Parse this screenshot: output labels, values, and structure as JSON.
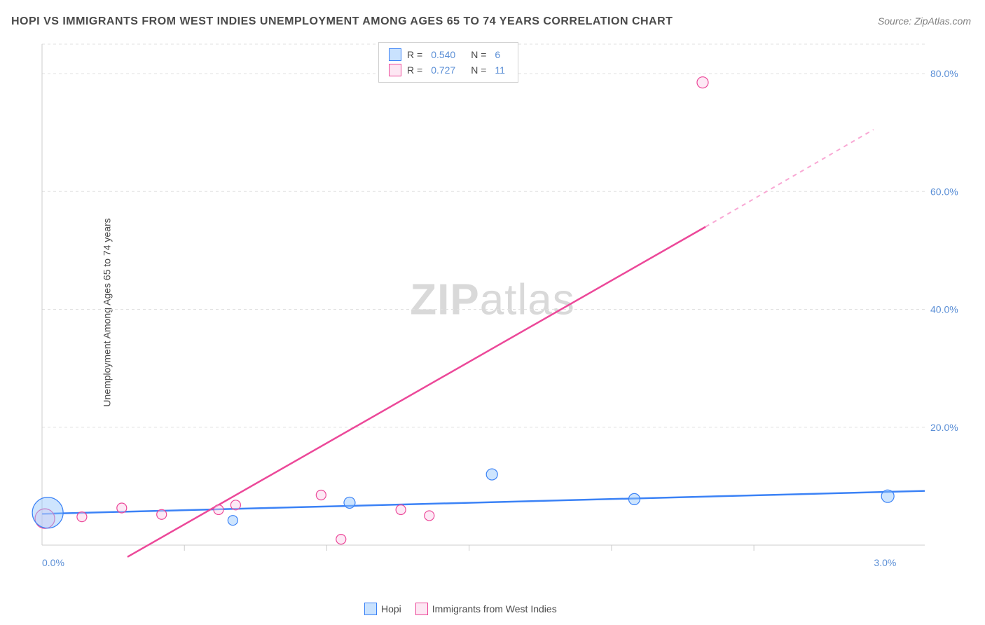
{
  "title": "HOPI VS IMMIGRANTS FROM WEST INDIES UNEMPLOYMENT AMONG AGES 65 TO 74 YEARS CORRELATION CHART",
  "source": "Source: ZipAtlas.com",
  "ylabel": "Unemployment Among Ages 65 to 74 years",
  "watermark_bold": "ZIP",
  "watermark_light": "atlas",
  "legend_top": {
    "series1": {
      "r_label": "R =",
      "r": "0.540",
      "n_label": "N =",
      "n": "6"
    },
    "series2": {
      "r_label": "R =",
      "r": "0.727",
      "n_label": "N =",
      "n": "11"
    }
  },
  "legend_bottom": {
    "series1": "Hopi",
    "series2": "Immigrants from West Indies"
  },
  "chart": {
    "type": "scatter",
    "xlim": [
      0.0,
      3.1
    ],
    "ylim": [
      0.0,
      85.0
    ],
    "xticks": [
      0.0,
      3.0
    ],
    "xtick_labels": [
      "0.0%",
      "3.0%"
    ],
    "xtick_minor": [
      0.5,
      1.0,
      1.5,
      2.0,
      2.5
    ],
    "yticks": [
      20.0,
      40.0,
      60.0,
      80.0
    ],
    "ytick_labels": [
      "20.0%",
      "40.0%",
      "60.0%",
      "80.0%"
    ],
    "colors": {
      "blue_stroke": "#3b82f6",
      "blue_fill": "rgba(147,197,253,0.45)",
      "pink_stroke": "#ec4899",
      "pink_fill": "rgba(251,207,232,0.45)",
      "grid": "#e0e0e0",
      "axis": "#cccccc",
      "tick_text": "#5b8fd6",
      "background": "#ffffff"
    },
    "series_blue": {
      "name": "Hopi",
      "points": [
        {
          "x": 0.02,
          "y": 5.5,
          "r": 22
        },
        {
          "x": 0.67,
          "y": 4.2,
          "r": 7
        },
        {
          "x": 1.08,
          "y": 7.2,
          "r": 8
        },
        {
          "x": 1.58,
          "y": 12.0,
          "r": 8
        },
        {
          "x": 2.08,
          "y": 7.8,
          "r": 8
        },
        {
          "x": 2.97,
          "y": 8.3,
          "r": 9
        }
      ],
      "trend": {
        "x1": 0.0,
        "y1": 5.3,
        "x2": 3.1,
        "y2": 9.2
      }
    },
    "series_pink": {
      "name": "Immigrants from West Indies",
      "points": [
        {
          "x": 0.01,
          "y": 4.5,
          "r": 14
        },
        {
          "x": 0.14,
          "y": 4.8,
          "r": 7
        },
        {
          "x": 0.28,
          "y": 6.3,
          "r": 7
        },
        {
          "x": 0.42,
          "y": 5.2,
          "r": 7
        },
        {
          "x": 0.62,
          "y": 6.0,
          "r": 7
        },
        {
          "x": 0.68,
          "y": 6.8,
          "r": 7
        },
        {
          "x": 0.98,
          "y": 8.5,
          "r": 7
        },
        {
          "x": 1.05,
          "y": 1.0,
          "r": 7
        },
        {
          "x": 1.26,
          "y": 6.0,
          "r": 7
        },
        {
          "x": 1.36,
          "y": 5.0,
          "r": 7
        },
        {
          "x": 2.32,
          "y": 78.5,
          "r": 8
        }
      ],
      "trend_solid": {
        "x1": 0.3,
        "y1": -2.0,
        "x2": 2.33,
        "y2": 54.0
      },
      "trend_dash": {
        "x1": 2.33,
        "y1": 54.0,
        "x2": 2.92,
        "y2": 70.5
      }
    }
  }
}
